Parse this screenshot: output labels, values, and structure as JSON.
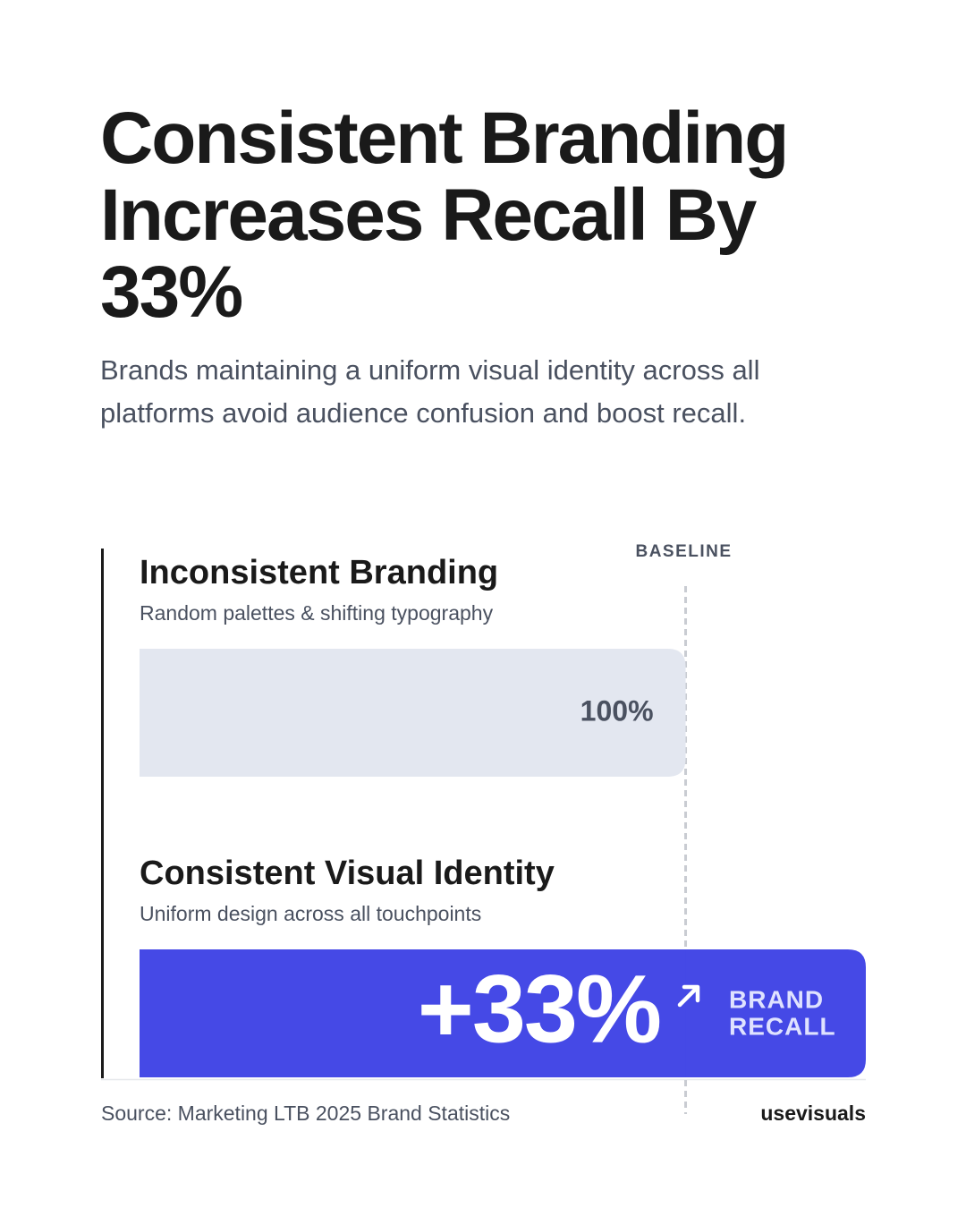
{
  "chart_data": {
    "type": "bar",
    "orientation": "horizontal",
    "title": "Consistent Branding Increases Recall By 33%",
    "subtitle": "Brands maintaining a uniform visual identity across all platforms avoid audience confusion and boost recall.",
    "xlim": [
      0,
      133
    ],
    "baseline": 100,
    "baseline_label": "BASELINE",
    "bars": [
      {
        "label": "Inconsistent Branding",
        "description": "Random palettes & shifting typography",
        "value": 100,
        "value_label": "100%",
        "color": "#e3e7f0"
      },
      {
        "label": "Consistent Visual Identity",
        "description": "Uniform design across all touchpoints",
        "base": 100,
        "value": 33,
        "value_label": "+33%",
        "color": "#4549e6",
        "note": [
          "BRAND",
          "RECALL"
        ]
      }
    ],
    "source": "Source: Marketing LTB 2025 Brand Statistics",
    "brand": "usevisuals"
  }
}
